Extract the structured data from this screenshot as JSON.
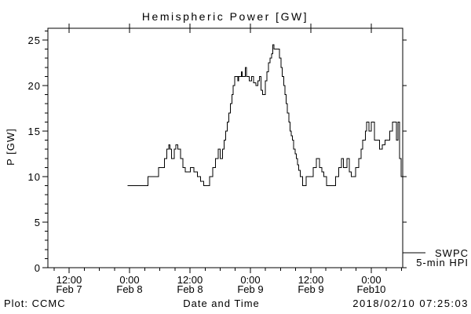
{
  "footer": {
    "credit": "Plot: CCMC",
    "timestamp": "2018/02/10 07:25:03"
  },
  "legend": {
    "label_line1": "SWPC",
    "label_line2": "5-min HPI"
  },
  "colors": {
    "line": "#000000",
    "axis": "#000000",
    "background": "#ffffff"
  },
  "chart_data": {
    "type": "line",
    "style": "step-post",
    "title": "Hemispheric Power [GW]",
    "xlabel": "Date and Time",
    "ylabel": "P [GW]",
    "x_unit": "hours since 2018-02-07 00:00",
    "xlim": [
      7.792,
      78.234
    ],
    "ylim": [
      0,
      26.293
    ],
    "grid": false,
    "legend_position": "outside-right-bottom",
    "x_major_ticks": [
      {
        "hours": 12,
        "line1": "12:00",
        "line2": "Feb 7"
      },
      {
        "hours": 24,
        "line1": "0:00",
        "line2": "Feb 8"
      },
      {
        "hours": 36,
        "line1": "12:00",
        "line2": "Feb 8"
      },
      {
        "hours": 48,
        "line1": "0:00",
        "line2": "Feb 9"
      },
      {
        "hours": 60,
        "line1": "12:00",
        "line2": "Feb 9"
      },
      {
        "hours": 72,
        "line1": "0:00",
        "line2": "Feb10"
      }
    ],
    "x_minor_interval_hours": 3,
    "y_major_ticks": [
      0,
      5,
      10,
      15,
      20,
      25
    ],
    "y_minor_interval": 1,
    "series": [
      {
        "name": "SWPC 5-min HPI",
        "color": "#000000",
        "points": [
          [
            23.6,
            9
          ],
          [
            27.7,
            10
          ],
          [
            29.8,
            11
          ],
          [
            30.9,
            12
          ],
          [
            31.4,
            13
          ],
          [
            31.8,
            13.5
          ],
          [
            32.0,
            13
          ],
          [
            32.3,
            12
          ],
          [
            32.9,
            13
          ],
          [
            33.2,
            13.5
          ],
          [
            33.6,
            13
          ],
          [
            34.1,
            12
          ],
          [
            34.6,
            11
          ],
          [
            35.1,
            10.5
          ],
          [
            36.1,
            11
          ],
          [
            36.8,
            10.5
          ],
          [
            37.5,
            10
          ],
          [
            38.1,
            9.5
          ],
          [
            38.7,
            9
          ],
          [
            39.9,
            10
          ],
          [
            40.5,
            11
          ],
          [
            41.1,
            12
          ],
          [
            41.6,
            13
          ],
          [
            42.0,
            12
          ],
          [
            42.5,
            13
          ],
          [
            42.8,
            14
          ],
          [
            43.1,
            15
          ],
          [
            43.4,
            16
          ],
          [
            43.7,
            17
          ],
          [
            44.0,
            18
          ],
          [
            44.3,
            19
          ],
          [
            44.6,
            20
          ],
          [
            44.9,
            21
          ],
          [
            45.5,
            20.5
          ],
          [
            45.7,
            21
          ],
          [
            46.2,
            21.5
          ],
          [
            46.4,
            21
          ],
          [
            47.0,
            22
          ],
          [
            47.2,
            21
          ],
          [
            47.8,
            20.5
          ],
          [
            48.2,
            21
          ],
          [
            48.6,
            20.3
          ],
          [
            49.1,
            20
          ],
          [
            49.5,
            20.5
          ],
          [
            49.8,
            21
          ],
          [
            50.1,
            19.5
          ],
          [
            50.4,
            19
          ],
          [
            51.0,
            20.5
          ],
          [
            51.3,
            21.5
          ],
          [
            51.6,
            22.5
          ],
          [
            51.9,
            23
          ],
          [
            52.2,
            23.5
          ],
          [
            52.45,
            24.5
          ],
          [
            52.65,
            24
          ],
          [
            53.8,
            23
          ],
          [
            54.1,
            22
          ],
          [
            54.35,
            21
          ],
          [
            54.6,
            20
          ],
          [
            54.85,
            19
          ],
          [
            55.1,
            18
          ],
          [
            55.35,
            17
          ],
          [
            55.6,
            16
          ],
          [
            55.85,
            15
          ],
          [
            56.1,
            14.5
          ],
          [
            56.35,
            14
          ],
          [
            56.6,
            13
          ],
          [
            56.85,
            12.5
          ],
          [
            57.1,
            12
          ],
          [
            57.35,
            11.3
          ],
          [
            57.6,
            10.7
          ],
          [
            57.9,
            10
          ],
          [
            58.4,
            9
          ],
          [
            59.1,
            10
          ],
          [
            60.5,
            11
          ],
          [
            61.1,
            12
          ],
          [
            61.7,
            11
          ],
          [
            62.2,
            10.5
          ],
          [
            62.6,
            10
          ],
          [
            63.1,
            9
          ],
          [
            64.9,
            10
          ],
          [
            65.5,
            11
          ],
          [
            66.1,
            12
          ],
          [
            66.5,
            11
          ],
          [
            67.2,
            12
          ],
          [
            67.6,
            10.5
          ],
          [
            68.0,
            10
          ],
          [
            68.9,
            11
          ],
          [
            69.5,
            12
          ],
          [
            70.0,
            13
          ],
          [
            70.3,
            14
          ],
          [
            70.8,
            15
          ],
          [
            71.1,
            16
          ],
          [
            71.5,
            15
          ],
          [
            72.0,
            16
          ],
          [
            72.6,
            14
          ],
          [
            73.6,
            13
          ],
          [
            74.2,
            13.5
          ],
          [
            74.7,
            14
          ],
          [
            75.7,
            15
          ],
          [
            76.2,
            16
          ],
          [
            77.0,
            14
          ],
          [
            77.3,
            16
          ],
          [
            77.6,
            12
          ],
          [
            77.9,
            10
          ],
          [
            78.23,
            10
          ]
        ]
      }
    ]
  }
}
